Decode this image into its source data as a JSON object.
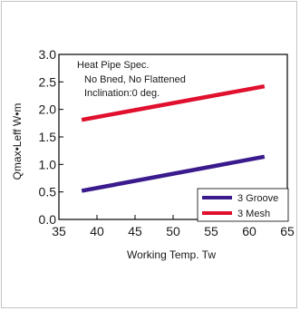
{
  "chart_data": {
    "type": "line",
    "xlabel": "Working Temp.  Tw",
    "ylabel": "Qmax•Leff  W•m",
    "xlim": [
      35,
      65
    ],
    "ylim": [
      0.0,
      3.0
    ],
    "x_ticks": [
      "35",
      "40",
      "45",
      "50",
      "55",
      "60",
      "65"
    ],
    "y_ticks": [
      "0.0",
      "0.5",
      "1.0",
      "1.5",
      "2.0",
      "2.5",
      "3.0"
    ],
    "annotation": [
      "Heat Pipe Spec.",
      "No Bned, No Flattened",
      "Inclination:0 deg."
    ],
    "grid": false,
    "legend_position": "bottom-right",
    "series": [
      {
        "name": "3 Groove",
        "color": "#3a1a8c",
        "x": [
          38,
          62
        ],
        "y": [
          0.52,
          1.14
        ]
      },
      {
        "name": "3 Mesh",
        "color": "#e0102e",
        "x": [
          38,
          62
        ],
        "y": [
          1.81,
          2.42
        ]
      }
    ]
  }
}
